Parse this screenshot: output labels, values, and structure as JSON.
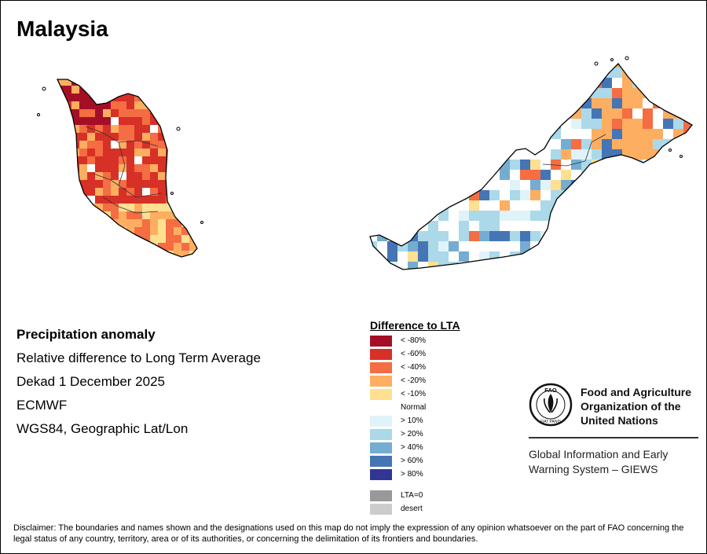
{
  "map": {
    "title": "Malaysia",
    "info": {
      "heading": "Precipitation anomaly",
      "subtitle": "Relative difference to Long Term Average",
      "period": "Dekad 1 December 2025",
      "source": "ECMWF",
      "projection": "WGS84, Geographic Lat/Lon"
    },
    "legend": {
      "title": "Difference to LTA",
      "items": [
        {
          "label": "< -80%",
          "color": "#a50f26"
        },
        {
          "label": "< -60%",
          "color": "#d73027"
        },
        {
          "label": "< -40%",
          "color": "#f46d43"
        },
        {
          "label": "< -20%",
          "color": "#fdae61"
        },
        {
          "label": "< -10%",
          "color": "#fee090"
        },
        {
          "label": "Normal",
          "color": "#ffffff"
        },
        {
          "label": "> 10%",
          "color": "#e0f3f8"
        },
        {
          "label": "> 20%",
          "color": "#abd9e9"
        },
        {
          "label": "> 40%",
          "color": "#74add1"
        },
        {
          "label": "> 60%",
          "color": "#4575b4"
        },
        {
          "label": "> 80%",
          "color": "#313695"
        }
      ],
      "extra": [
        {
          "label": "LTA=0",
          "color": "#999999"
        },
        {
          "label": "desert",
          "color": "#cccccc"
        }
      ]
    },
    "organization": {
      "name_lines": [
        "Food and Agriculture",
        "Organization of the",
        "United Nations"
      ],
      "logo_text": "FAO",
      "motto": "FIAT PANIS",
      "system_lines": [
        "Global Information and Early",
        "Warning System – GIEWS"
      ]
    },
    "disclaimer": "Disclaimer: The boundaries and names shown and the designations used on this map do not imply the expression of any opinion whatsoever on the part of FAO concerning the legal status of any country, territory, area or of its authorities, or concerning the delimitation of its frontiers and boundaries."
  }
}
